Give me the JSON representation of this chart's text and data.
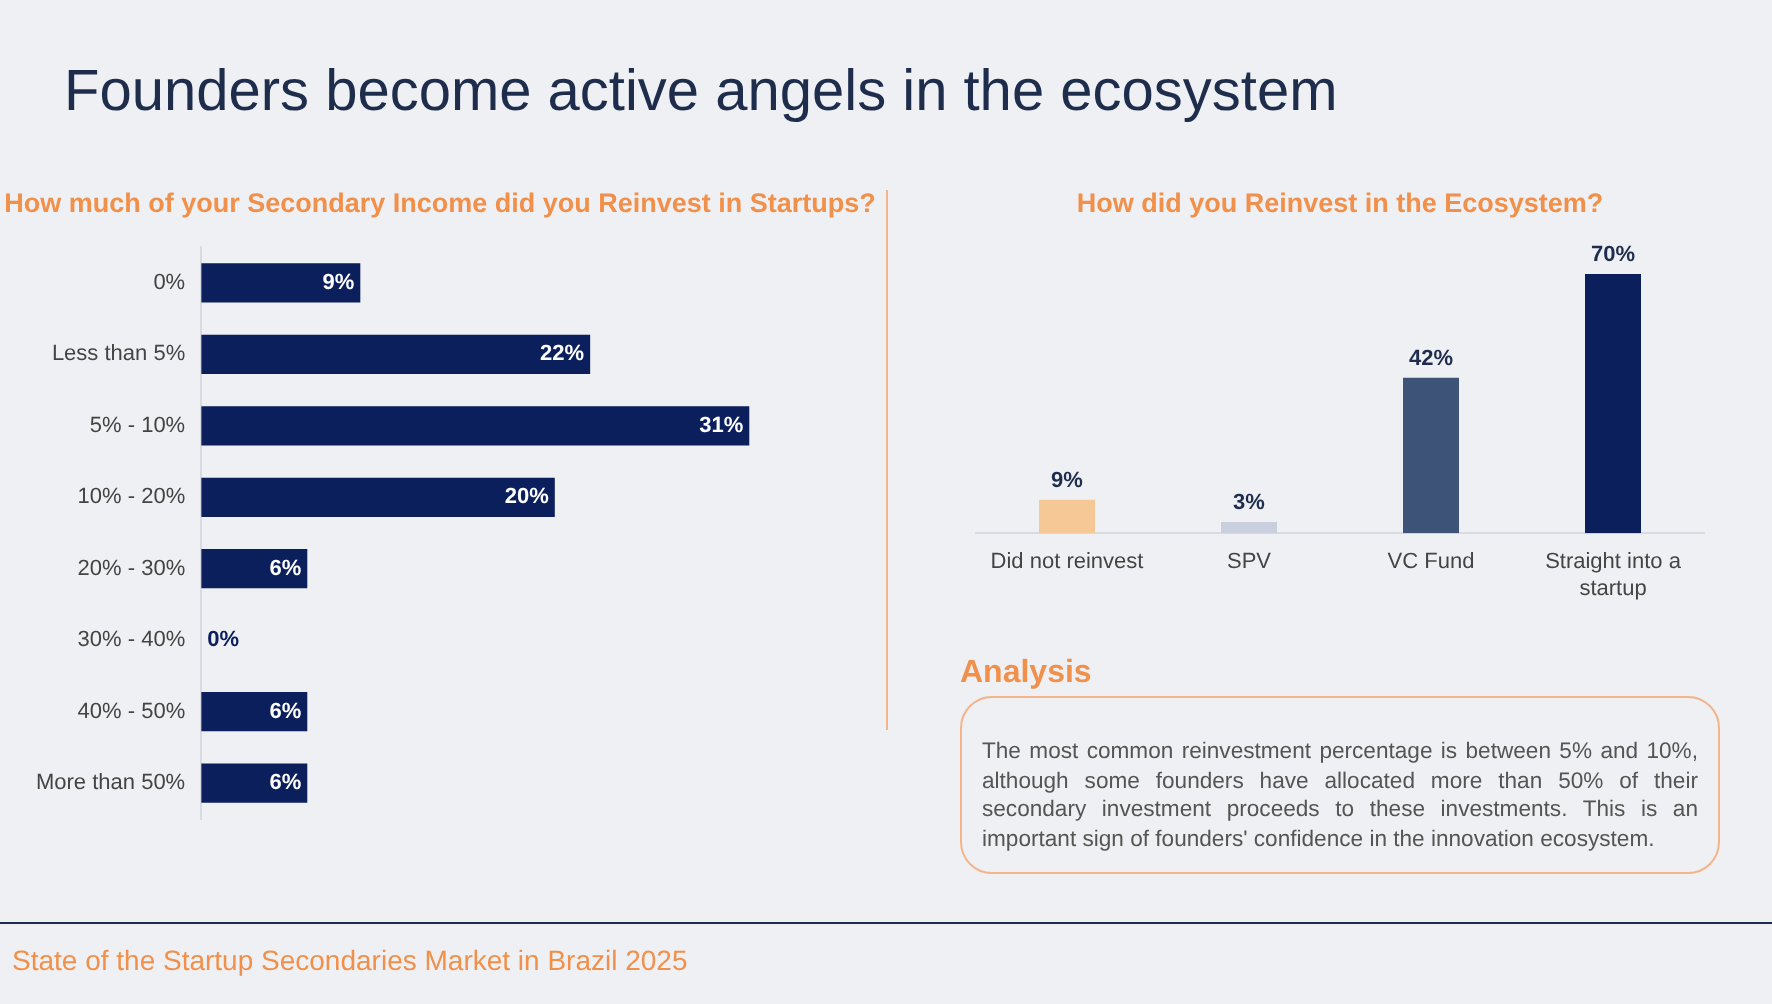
{
  "chart_data": [
    {
      "type": "bar",
      "orientation": "horizontal",
      "title": "How much of your Secondary Income did you Reinvest in Startups?",
      "categories": [
        "0%",
        "Less than 5%",
        "5% - 10%",
        "10% - 20%",
        "20% - 30%",
        "30% - 40%",
        "40% - 50%",
        "More than 50%"
      ],
      "values": [
        9,
        22,
        31,
        20,
        6,
        0,
        6,
        6
      ],
      "value_labels": [
        "9%",
        "22%",
        "31%",
        "20%",
        "6%",
        "0%",
        "6%",
        "6%"
      ],
      "color": "#0b1f5c",
      "tick_labels": "y",
      "annotations": [
        "Founders become active angels in the ecosystem",
        "State of the Startup Secondaries Market in Brazil 2025"
      ]
    },
    {
      "type": "bar",
      "title": "How did you Reinvest in the Ecosystem?",
      "categories": [
        "Did not reinvest",
        "SPV",
        "VC Fund",
        "Straight into a startup"
      ],
      "values": [
        9,
        3,
        42,
        70
      ],
      "colors": [
        "#f5c896",
        "#c9cfdc",
        "#3d5478",
        "#0b1f5c"
      ],
      "value_labels": [
        "9%",
        "3%",
        "42%",
        "70%"
      ],
      "tick_labels": "x"
    },
    {
      "type": "other",
      "title": "Analysis",
      "annotations": [
        "The most common reinvestment percentage is between 5% and 10%, although some founders have allocated more than 50% of their secondary investment proceeds to these investments. This is an important sign of founders' confidence in the innovation ecosystem."
      ]
    }
  ]
}
